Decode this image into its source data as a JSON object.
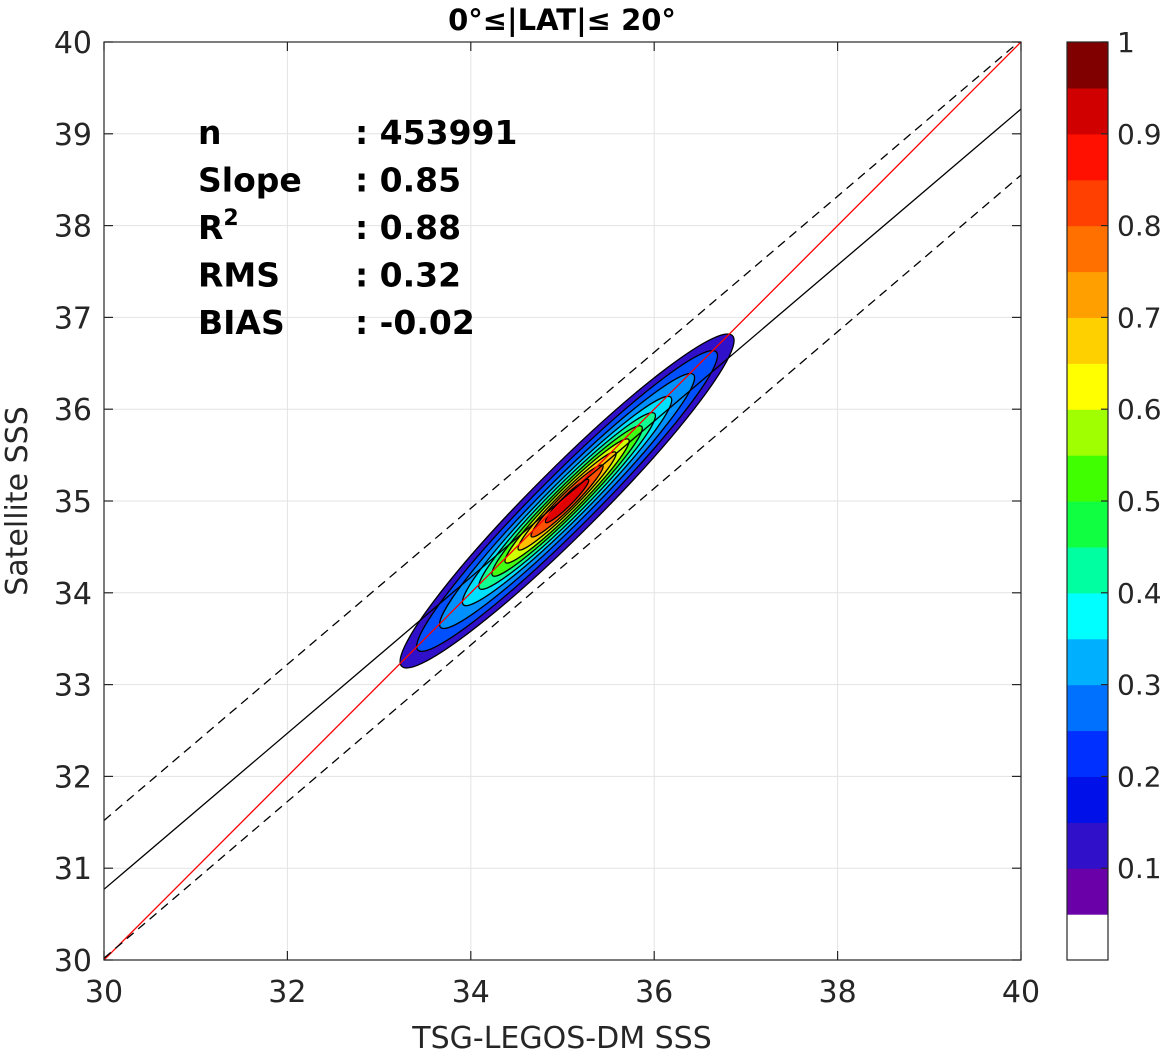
{
  "chart_data": {
    "type": "contour",
    "title": "0°≤|LAT|≤ 20°",
    "xlabel": "TSG-LEGOS-DM SSS",
    "ylabel": "Satellite SSS",
    "xlim": [
      30,
      40
    ],
    "ylim": [
      30,
      40
    ],
    "xticks": [
      "30",
      "32",
      "34",
      "36",
      "38",
      "40"
    ],
    "yticks": [
      "30",
      "31",
      "32",
      "33",
      "34",
      "35",
      "36",
      "37",
      "38",
      "39",
      "40"
    ],
    "grid": true,
    "density": {
      "center": [
        35.05,
        35.0
      ],
      "levels": [
        {
          "level": 0.05,
          "half_length": 2.55,
          "half_width": 0.36
        },
        {
          "level": 0.1,
          "half_length": 2.3,
          "half_width": 0.3
        },
        {
          "level": 0.2,
          "half_length": 1.95,
          "half_width": 0.25
        },
        {
          "level": 0.3,
          "half_length": 1.6,
          "half_width": 0.21
        },
        {
          "level": 0.4,
          "half_length": 1.35,
          "half_width": 0.18
        },
        {
          "level": 0.5,
          "half_length": 1.15,
          "half_width": 0.15
        },
        {
          "level": 0.6,
          "half_length": 0.95,
          "half_width": 0.125
        },
        {
          "level": 0.7,
          "half_length": 0.75,
          "half_width": 0.1
        },
        {
          "level": 0.8,
          "half_length": 0.55,
          "half_width": 0.08
        },
        {
          "level": 0.9,
          "half_length": 0.33,
          "half_width": 0.055
        }
      ],
      "level_colors": [
        "#3010C8",
        "#0050FF",
        "#0090FF",
        "#00E0FF",
        "#10FF90",
        "#40FF10",
        "#D0FF00",
        "#FFC000",
        "#FF5000",
        "#E00000"
      ]
    },
    "lines": [
      {
        "name": "1:1",
        "points": [
          [
            30,
            30
          ],
          [
            40,
            40
          ]
        ],
        "color": "#FF0000",
        "dash": "solid"
      },
      {
        "name": "fit",
        "points": [
          [
            30,
            30.77
          ],
          [
            40,
            39.27
          ]
        ],
        "color": "#000000",
        "dash": "solid"
      },
      {
        "name": "upper bound",
        "points": [
          [
            30,
            31.52
          ],
          [
            40,
            40.02
          ]
        ],
        "color": "#000000",
        "dash": "dashed"
      },
      {
        "name": "lower bound",
        "points": [
          [
            30,
            30.02
          ],
          [
            40,
            38.55
          ]
        ],
        "color": "#000000",
        "dash": "dashed"
      }
    ],
    "stats": [
      {
        "label": "n",
        "value": ": 453991"
      },
      {
        "label": "Slope",
        "value": ": 0.85"
      },
      {
        "label": "R",
        "sup": "2",
        "value": ": 0.88"
      },
      {
        "label": "RMS",
        "value": ": 0.32"
      },
      {
        "label": "BIAS",
        "value": ": -0.02"
      }
    ],
    "colorbar": {
      "position": "right",
      "range": [
        0,
        1
      ],
      "ticks": [
        "0.1",
        "0.2",
        "0.3",
        "0.4",
        "0.5",
        "0.6",
        "0.7",
        "0.8",
        "0.9",
        "1"
      ],
      "colors": [
        "#FFFFFF",
        "#6A00A8",
        "#3010C8",
        "#0010E8",
        "#0030FF",
        "#0070FF",
        "#00B0FF",
        "#00FFFF",
        "#00FFA0",
        "#10FF40",
        "#40FF00",
        "#A0FF00",
        "#FFFF00",
        "#FFD000",
        "#FFA000",
        "#FF7000",
        "#FF4000",
        "#FF1000",
        "#D00000",
        "#800000"
      ]
    }
  }
}
